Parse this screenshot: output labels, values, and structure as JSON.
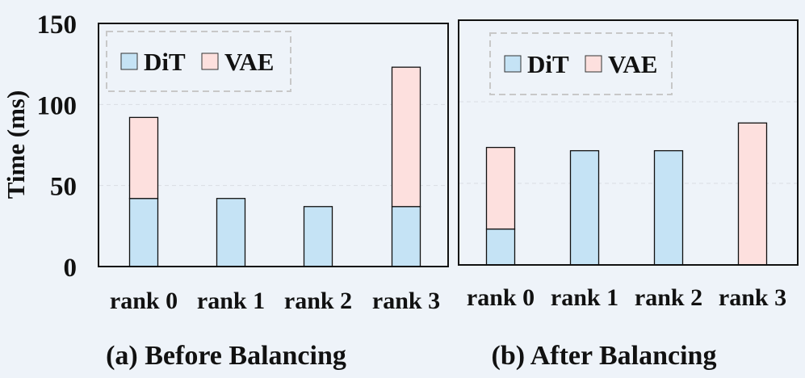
{
  "chart_data": [
    {
      "type": "bar",
      "stacked": true,
      "title": "(a) Before Balancing",
      "ylabel": "Time (ms)",
      "ylim": [
        0,
        150
      ],
      "yticks": [
        0,
        50,
        100,
        150
      ],
      "grid": "horizontal dashed",
      "legend_position": "top-left",
      "categories": [
        "rank 0",
        "rank 1",
        "rank 2",
        "rank 3"
      ],
      "series": [
        {
          "name": "DiT",
          "color": "#c5e3f5",
          "values": [
            42,
            42,
            37,
            37
          ]
        },
        {
          "name": "VAE",
          "color": "#fde0de",
          "values": [
            50,
            0,
            0,
            86
          ]
        }
      ]
    },
    {
      "type": "bar",
      "stacked": true,
      "title": "(b) After Balancing",
      "ylim": [
        0,
        150
      ],
      "grid": "horizontal dashed",
      "legend_position": "top-left",
      "categories": [
        "rank 0",
        "rank 1",
        "rank 2",
        "rank 3"
      ],
      "series": [
        {
          "name": "DiT",
          "color": "#c5e3f5",
          "values": [
            22,
            70,
            70,
            0
          ]
        },
        {
          "name": "VAE",
          "color": "#fde0de",
          "values": [
            50,
            0,
            0,
            87
          ]
        }
      ]
    }
  ]
}
